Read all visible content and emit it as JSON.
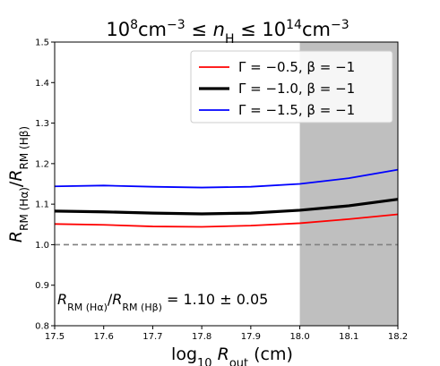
{
  "chart_data": {
    "type": "line",
    "title": "10⁸cm⁻³ ≤ n_H ≤ 10¹⁴cm⁻³",
    "xlabel": "log₁₀ R_out (cm)",
    "ylabel": "R_RM (Hα)/R_RM (Hβ)",
    "xlim": [
      17.5,
      18.2
    ],
    "ylim": [
      0.8,
      1.5
    ],
    "xticks": [
      "17.5",
      "17.6",
      "17.7",
      "17.8",
      "17.9",
      "18.0",
      "18.1",
      "18.2"
    ],
    "yticks": [
      "0.8",
      "0.9",
      "1.0",
      "1.1",
      "1.2",
      "1.3",
      "1.4",
      "1.5"
    ],
    "grid": false,
    "legend_position": "top-right",
    "shaded_region": {
      "x_from": 18.0,
      "x_to": 18.2,
      "color": "#bfbfbf"
    },
    "reference_line": {
      "y": 1.0,
      "style": "dashed",
      "color": "#808080"
    },
    "series": [
      {
        "name": "Γ = −0.5, β = −1",
        "color": "#ff0000",
        "width": "thin",
        "x": [
          17.5,
          17.6,
          17.7,
          17.8,
          17.9,
          18.0,
          18.1,
          18.2
        ],
        "values": [
          1.051,
          1.049,
          1.045,
          1.044,
          1.047,
          1.053,
          1.063,
          1.075
        ]
      },
      {
        "name": "Γ = −1.0, β = −1",
        "color": "#000000",
        "width": "thick",
        "x": [
          17.5,
          17.6,
          17.7,
          17.8,
          17.9,
          18.0,
          18.1,
          18.2
        ],
        "values": [
          1.083,
          1.081,
          1.078,
          1.076,
          1.078,
          1.085,
          1.096,
          1.112
        ]
      },
      {
        "name": "Γ = −1.5, β = −1",
        "color": "#0000ff",
        "width": "thin",
        "x": [
          17.5,
          17.6,
          17.7,
          17.8,
          17.9,
          18.0,
          18.1,
          18.2
        ],
        "values": [
          1.144,
          1.146,
          1.143,
          1.141,
          1.143,
          1.15,
          1.164,
          1.185
        ]
      }
    ],
    "annotation": "R_RM (Hα)/R_RM (Hβ) = 1.10 ± 0.05"
  }
}
